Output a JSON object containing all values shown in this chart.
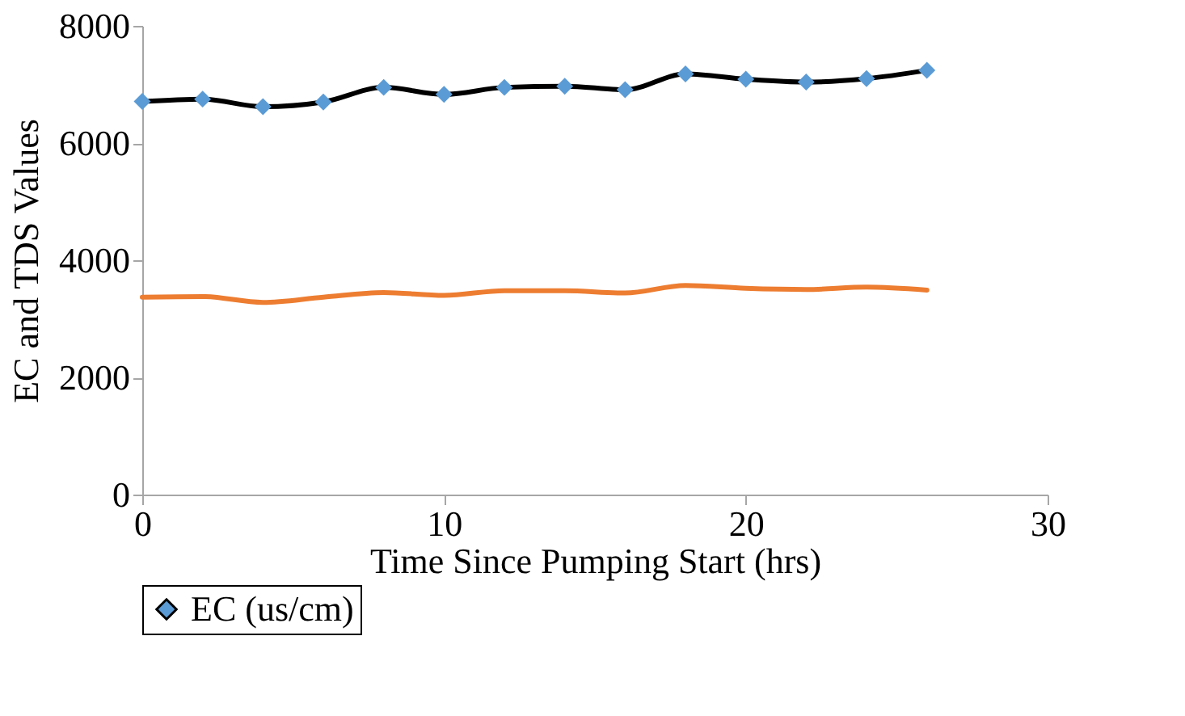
{
  "chart_data": {
    "type": "line",
    "xlabel": "Time Since Pumping Start (hrs)",
    "ylabel": "EC and TDS Values",
    "x": [
      0,
      2,
      4,
      6,
      8,
      10,
      12,
      14,
      16,
      18,
      20,
      22,
      24,
      26
    ],
    "series": [
      {
        "name": "EC (us/cm)",
        "color": "#000000",
        "marker": "diamond",
        "colors": [
          "#5b9bd5",
          "#5b9bd5",
          "#5b9bd5",
          "#5b9bd5",
          "#5b9bd5",
          "#5b9bd5",
          "#5b9bd5",
          "#5b9bd5",
          "#5b9bd5",
          "#5b9bd5",
          "#5b9bd5",
          "#5b9bd5",
          "#5b9bd5",
          "#5b9bd5"
        ],
        "values": [
          6710,
          6750,
          6620,
          6700,
          6950,
          6830,
          6950,
          6970,
          6910,
          7180,
          7090,
          7040,
          7100,
          7240
        ]
      },
      {
        "color": "#ed7d31",
        "marker": "none",
        "values": [
          3370,
          3380,
          3280,
          3370,
          3450,
          3400,
          3480,
          3480,
          3440,
          3570,
          3520,
          3500,
          3540,
          3490
        ]
      }
    ],
    "xlim": [
      0,
      30
    ],
    "xticks": [
      0,
      10,
      20,
      30
    ],
    "ylim": [
      0,
      8000
    ],
    "yticks": [
      0,
      2000,
      4000,
      6000,
      8000
    ],
    "grid": false,
    "legend": "bottom",
    "line_style": "solid"
  }
}
